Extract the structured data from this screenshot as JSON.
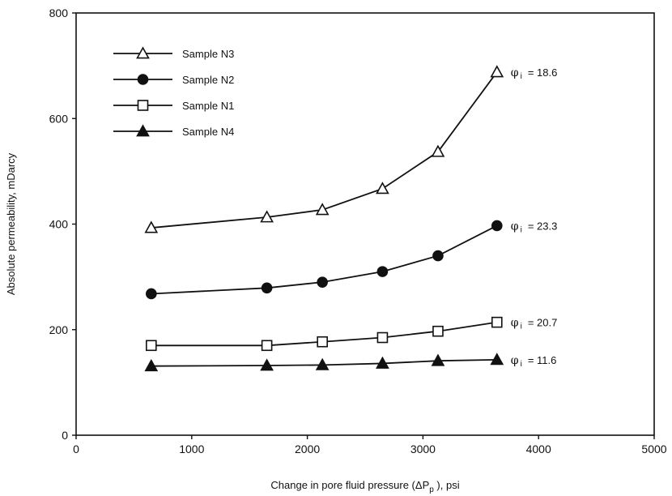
{
  "chart_data": {
    "type": "line",
    "xlabel": "Change in pore fluid pressure (",
    "xlabel_delta": "ΔP",
    "xlabel_sub": "p",
    "xlabel_tail": " ), psi",
    "ylabel": "Absolute permeability, mDarcy",
    "xlim": [
      0,
      5000
    ],
    "ylim": [
      0,
      800
    ],
    "xticks": [
      0,
      1000,
      2000,
      3000,
      4000,
      5000
    ],
    "yticks": [
      0,
      200,
      400,
      600,
      800
    ],
    "legend_position": "top-left",
    "grid": false,
    "series": [
      {
        "name": "Sample N3",
        "marker": "triangle-open",
        "x": [
          650,
          1650,
          2130,
          2650,
          3130,
          3640
        ],
        "y": [
          393,
          413,
          427,
          467,
          537,
          688
        ],
        "annotation": {
          "symbol": "φ",
          "subscript": "i",
          "value": "= 18.6"
        }
      },
      {
        "name": "Sample N2",
        "marker": "circle-filled",
        "x": [
          650,
          1650,
          2130,
          2650,
          3130,
          3640
        ],
        "y": [
          268,
          279,
          290,
          310,
          340,
          397
        ],
        "annotation": {
          "symbol": "φ",
          "subscript": "i",
          "value": "= 23.3"
        }
      },
      {
        "name": "Sample N1",
        "marker": "square-open",
        "x": [
          650,
          1650,
          2130,
          2650,
          3130,
          3640
        ],
        "y": [
          170,
          170,
          177,
          185,
          197,
          214
        ],
        "annotation": {
          "symbol": "φ",
          "subscript": "i",
          "value": "= 20.7"
        }
      },
      {
        "name": "Sample N4",
        "marker": "triangle-filled",
        "x": [
          650,
          1650,
          2130,
          2650,
          3130,
          3640
        ],
        "y": [
          131,
          132,
          133,
          136,
          141,
          143
        ],
        "annotation": {
          "symbol": "φ",
          "subscript": "i",
          "value": "= 11.6"
        }
      }
    ]
  }
}
